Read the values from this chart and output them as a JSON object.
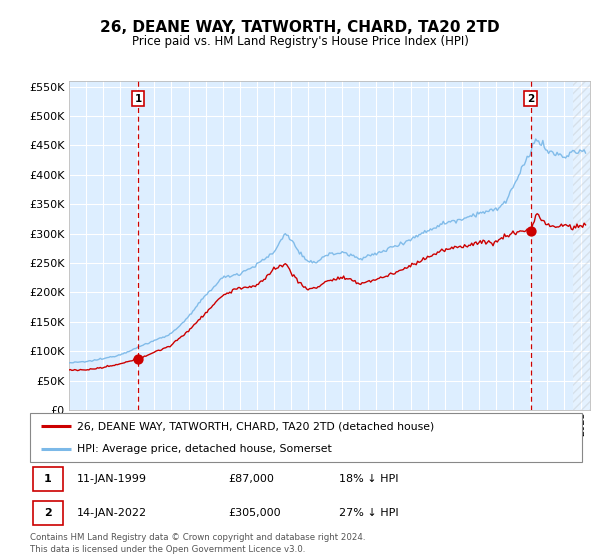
{
  "title": "26, DEANE WAY, TATWORTH, CHARD, TA20 2TD",
  "subtitle": "Price paid vs. HM Land Registry's House Price Index (HPI)",
  "legend_line1": "26, DEANE WAY, TATWORTH, CHARD, TA20 2TD (detached house)",
  "legend_line2": "HPI: Average price, detached house, Somerset",
  "annotation1_label": "1",
  "annotation1_date": "11-JAN-1999",
  "annotation1_price": "£87,000",
  "annotation1_hpi": "18% ↓ HPI",
  "annotation2_label": "2",
  "annotation2_date": "14-JAN-2022",
  "annotation2_price": "£305,000",
  "annotation2_hpi": "27% ↓ HPI",
  "copyright_text": "Contains HM Land Registry data © Crown copyright and database right 2024.\nThis data is licensed under the Open Government Licence v3.0.",
  "sale1_year": 1999.04,
  "sale1_value": 87000,
  "sale2_year": 2022.04,
  "sale2_value": 305000,
  "vline1_year": 1999.04,
  "vline2_year": 2022.04,
  "hpi_color": "#7cb9e8",
  "price_color": "#cc0000",
  "vline_color": "#cc0000",
  "plot_bg_color": "#ddeeff",
  "grid_color": "#ffffff",
  "ylim": [
    0,
    560000
  ],
  "yticks": [
    0,
    50000,
    100000,
    150000,
    200000,
    250000,
    300000,
    350000,
    400000,
    450000,
    500000,
    550000
  ],
  "xmin": 1995.0,
  "xmax": 2025.5,
  "hpi_control_years": [
    1995.0,
    1996.0,
    1997.0,
    1998.0,
    1999.0,
    2000.0,
    2001.0,
    2002.0,
    2003.0,
    2004.0,
    2005.0,
    2006.0,
    2007.0,
    2007.7,
    2008.5,
    2009.0,
    2009.5,
    2010.0,
    2011.0,
    2012.0,
    2013.0,
    2014.0,
    2015.0,
    2016.0,
    2017.0,
    2018.0,
    2019.0,
    2020.0,
    2020.5,
    2021.0,
    2021.5,
    2022.0,
    2022.3,
    2022.8,
    2023.0,
    2023.5,
    2024.0,
    2024.5,
    2025.3
  ],
  "hpi_control_vals": [
    80000,
    82000,
    87000,
    94000,
    106000,
    118000,
    130000,
    158000,
    195000,
    225000,
    232000,
    247000,
    268000,
    302000,
    268000,
    250000,
    252000,
    263000,
    268000,
    258000,
    265000,
    278000,
    290000,
    305000,
    318000,
    325000,
    335000,
    340000,
    352000,
    378000,
    408000,
    435000,
    462000,
    450000,
    440000,
    435000,
    430000,
    438000,
    440000
  ],
  "price_control_years": [
    1995.0,
    1996.0,
    1997.0,
    1998.0,
    1999.04,
    2000.0,
    2001.0,
    2002.0,
    2003.0,
    2004.0,
    2005.0,
    2006.0,
    2007.0,
    2007.7,
    2008.5,
    2009.0,
    2009.5,
    2010.0,
    2011.0,
    2012.0,
    2013.0,
    2014.0,
    2015.0,
    2016.0,
    2017.0,
    2018.0,
    2019.0,
    2020.0,
    2020.5,
    2021.0,
    2021.5,
    2022.04,
    2022.4,
    2022.8,
    2023.0,
    2023.5,
    2024.0,
    2024.5,
    2025.3
  ],
  "price_control_vals": [
    68000,
    68000,
    72000,
    78000,
    87000,
    98000,
    110000,
    135000,
    165000,
    195000,
    208000,
    210000,
    240000,
    248000,
    215000,
    205000,
    208000,
    218000,
    225000,
    215000,
    222000,
    232000,
    245000,
    260000,
    272000,
    278000,
    285000,
    285000,
    295000,
    300000,
    305000,
    305000,
    335000,
    320000,
    315000,
    310000,
    315000,
    310000,
    315000
  ]
}
